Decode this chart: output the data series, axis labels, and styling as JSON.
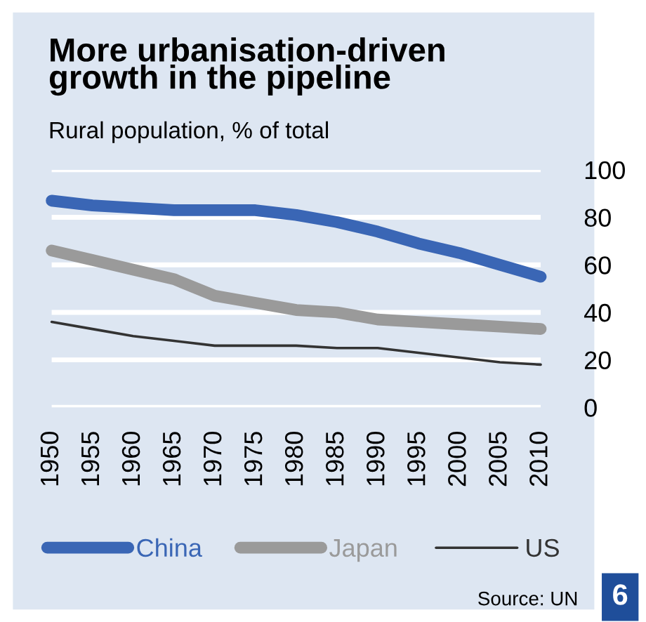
{
  "chart_data": {
    "type": "line",
    "title": "More urbanisation-driven\ngrowth in the pipeline",
    "subtitle": "Rural population, % of total",
    "x": [
      1950,
      1955,
      1960,
      1965,
      1970,
      1975,
      1980,
      1985,
      1990,
      1995,
      2000,
      2005,
      2010
    ],
    "series": [
      {
        "name": "China",
        "color": "#3a66b5",
        "values": [
          87,
          85,
          84,
          83,
          83,
          83,
          81,
          78,
          74,
          69,
          65,
          60,
          55
        ]
      },
      {
        "name": "Japan",
        "color": "#9a9a9a",
        "values": [
          66,
          62,
          58,
          54,
          47,
          44,
          41,
          40,
          37,
          36,
          35,
          34,
          33
        ]
      },
      {
        "name": "US",
        "color": "#333333",
        "values": [
          36,
          33,
          30,
          28,
          26,
          26,
          26,
          25,
          25,
          23,
          21,
          19,
          18
        ]
      }
    ],
    "xlim": [
      1950,
      2010
    ],
    "xticks": [
      1950,
      1955,
      1960,
      1965,
      1970,
      1975,
      1980,
      1985,
      1990,
      1995,
      2000,
      2005,
      2010
    ],
    "ylim": [
      0,
      100
    ],
    "yticks": [
      0,
      20,
      40,
      60,
      80,
      100
    ],
    "grid": "y",
    "legend": "bottom",
    "marker": "none",
    "line_style": "solid",
    "annotations": [
      "Source: UN",
      "6"
    ]
  }
}
